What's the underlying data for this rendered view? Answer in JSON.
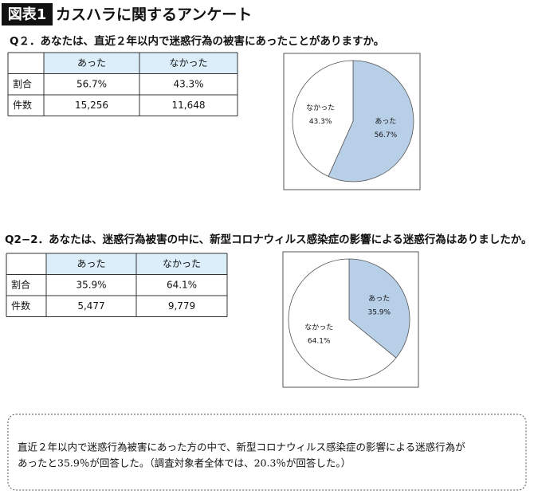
{
  "header": {
    "badge": "図表1",
    "title": "カスハラに関するアンケート"
  },
  "sections": [
    {
      "question": "Q２．あなたは、直近２年以内で迷惑行為の被害にあったことがありますか。",
      "table": {
        "columns": [
          "あった",
          "なかった"
        ],
        "rows": [
          [
            "割合",
            "56.7%",
            "43.3%"
          ],
          [
            "件数",
            "15,256",
            "11,648"
          ]
        ]
      }
    },
    {
      "question": "Q2−2．あなたは、迷惑行為被害の中に、新型コロナウィルス感染症の影響による迷惑行為はありましたか。",
      "table": {
        "columns": [
          "あった",
          "なかった"
        ],
        "rows": [
          [
            "割合",
            "35.9%",
            "64.1%"
          ],
          [
            "件数",
            "5,477",
            "9,779"
          ]
        ]
      }
    }
  ],
  "chart_data": [
    {
      "type": "pie",
      "categories": [
        "あった",
        "なかった"
      ],
      "values": [
        56.7,
        43.3
      ],
      "value_labels": [
        "56.7%",
        "43.3%"
      ],
      "colors": [
        "#b8cfe8",
        "#ffffff"
      ]
    },
    {
      "type": "pie",
      "categories": [
        "あった",
        "なかった"
      ],
      "values": [
        35.9,
        64.1
      ],
      "value_labels": [
        "35.9%",
        "64.1%"
      ],
      "colors": [
        "#b8cfe8",
        "#ffffff"
      ]
    }
  ],
  "note": {
    "lines": [
      "直近２年以内で迷惑行為被害にあった方の中で、新型コロナウィルス感染症の影響による迷惑行為が",
      "あったと35.9％が回答した。（調査対象者全体では、20.3％が回答した。）"
    ]
  }
}
